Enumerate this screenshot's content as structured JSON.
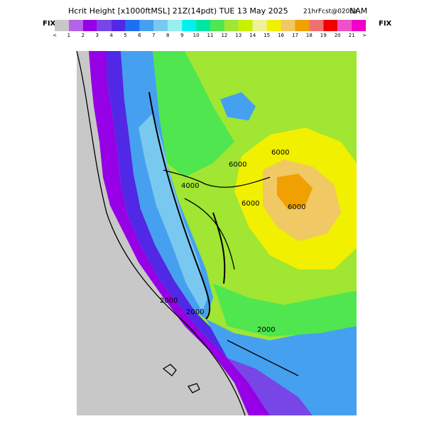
{
  "header": {
    "title": "Hcrit Height [x1000ftMSL] 21Z(14pdt) TUE 13 May 2025",
    "run": "21hrFcst@0206z",
    "model": "NAM",
    "left_label": "FIX",
    "right_label": "FIX"
  },
  "colorbar": {
    "colors": [
      "#c8c8c8",
      "#b464e6",
      "#9600e6",
      "#7846e6",
      "#5028e6",
      "#1e6ef0",
      "#46a0f0",
      "#78c8f0",
      "#96f0f0",
      "#00f0f0",
      "#00e6a0",
      "#50e650",
      "#a0e632",
      "#c8f000",
      "#f0f096",
      "#f0f000",
      "#f0c864",
      "#f0a000",
      "#f07070",
      "#f00000",
      "#f050c8",
      "#f000c8"
    ],
    "labels": [
      "<",
      "1",
      "2",
      "3",
      "4",
      "5",
      "6",
      "7",
      "8",
      "9",
      "10",
      "11",
      "12",
      "13",
      "14",
      "15",
      "16",
      "17",
      "18",
      "19",
      "20",
      "21",
      ">"
    ]
  },
  "map": {
    "contour_labels": [
      "6000",
      "6000",
      "6000",
      "6000",
      "4000",
      "2000",
      "2000",
      "2000"
    ]
  }
}
